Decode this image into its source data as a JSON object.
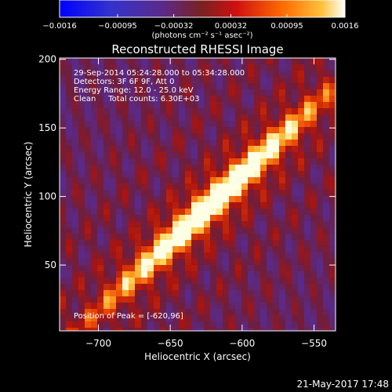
{
  "title": "Reconstructed RHESSI Image",
  "colorbar": {
    "unit_label": "(photons cm⁻² s⁻¹ asec⁻²)",
    "ticks": [
      "-0.0016",
      "-0.00095",
      "-0.00032",
      "0.00032",
      "0.00095",
      "0.0016"
    ],
    "range": [
      -0.0016,
      0.0016
    ],
    "colors": [
      "#0000ff",
      "#3333cc",
      "#5a2a8a",
      "#7a2020",
      "#d01010",
      "#ff6a00",
      "#ffc23c",
      "#ffffff"
    ]
  },
  "annotations": [
    "29-Sep-2014 05:24:28.000 to 05:34:28.000",
    "Detectors: 3F 6F 9F, Att 0",
    "Energy Range: 12.0 - 25.0 keV",
    "Clean     Total counts: 6.30E+03"
  ],
  "peak_label": "Position of Peak = [-620,96]",
  "footer_date": "21-May-2017 17:48",
  "chart_data": {
    "type": "heatmap",
    "title": "Reconstructed RHESSI Image",
    "xlabel": "Heliocentric X (arcsec)",
    "ylabel": "Heliocentric Y (arcsec)",
    "xlim": [
      -727,
      -535
    ],
    "ylim": [
      2,
      201
    ],
    "x_ticks": [
      -700,
      -650,
      -600,
      -550
    ],
    "y_ticks": [
      50,
      100,
      150,
      200
    ],
    "x_tick_labels": [
      "−700",
      "−650",
      "−600",
      "−550"
    ],
    "y_tick_labels": [
      "50",
      "100",
      "150",
      "200"
    ],
    "peak": [
      -620,
      96
    ],
    "value_range": [
      -0.0016,
      0.0016
    ],
    "source_orientation": "elongated ridge from upper-left to lower-right with parallel diagonal side lobes",
    "grid": false
  }
}
